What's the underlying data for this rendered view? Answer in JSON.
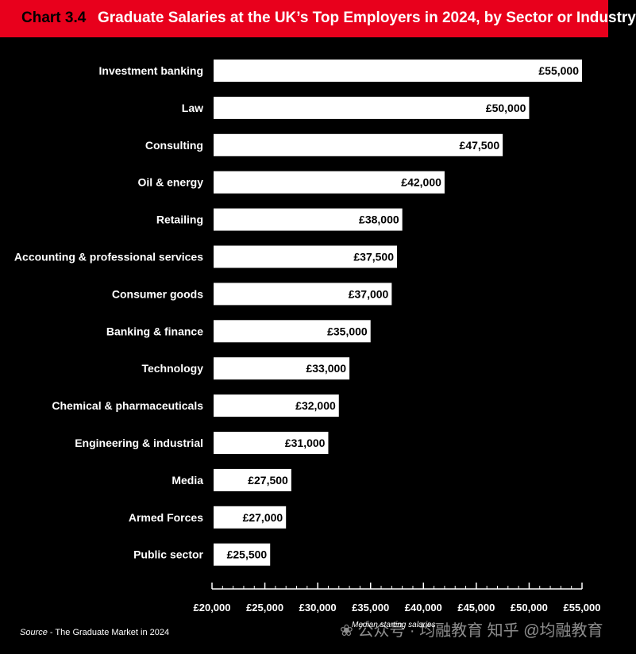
{
  "header": {
    "chart_number": "Chart 3.4",
    "title": "Graduate Salaries at the UK’s Top Employers in 2024, by Sector or Industry"
  },
  "source": {
    "label": "Source",
    "text": " - The Graduate Market in 2024"
  },
  "note": "Median starting salaries",
  "watermark": "❀ 公众号 · 均融教育   知乎 @均融教育",
  "colors": {
    "background": "#000000",
    "title_bar": "#e8001c",
    "bar": "#ffffff",
    "bar_label": "#000000"
  },
  "chart_data": {
    "type": "bar",
    "orientation": "horizontal",
    "title": "Graduate Salaries at the UK’s Top Employers in 2024, by Sector or Industry",
    "xlabel": "Median starting salaries",
    "ylabel": "",
    "xlim": [
      20000,
      55000
    ],
    "x_ticks": [
      20000,
      25000,
      30000,
      35000,
      40000,
      45000,
      50000,
      55000
    ],
    "x_tick_labels": [
      "£20,000",
      "£25,000",
      "£30,000",
      "£35,000",
      "£40,000",
      "£45,000",
      "£50,000",
      "£55,000"
    ],
    "grid": false,
    "legend": "none",
    "categories": [
      "Investment banking",
      "Law",
      "Consulting",
      "Oil & energy",
      "Retailing",
      "Accounting & professional services",
      "Consumer goods",
      "Banking & finance",
      "Technology",
      "Chemical & pharmaceuticals",
      "Engineering & industrial",
      "Media",
      "Armed Forces",
      "Public sector"
    ],
    "values": [
      55000,
      50000,
      47500,
      42000,
      38000,
      37500,
      37000,
      35000,
      33000,
      32000,
      31000,
      27500,
      27000,
      25500
    ],
    "value_labels": [
      "£55,000",
      "£50,000",
      "£47,500",
      "£42,000",
      "£38,000",
      "£37,500",
      "£37,000",
      "£35,000",
      "£33,000",
      "£32,000",
      "£31,000",
      "£27,500",
      "£27,000",
      "£25,500"
    ]
  }
}
